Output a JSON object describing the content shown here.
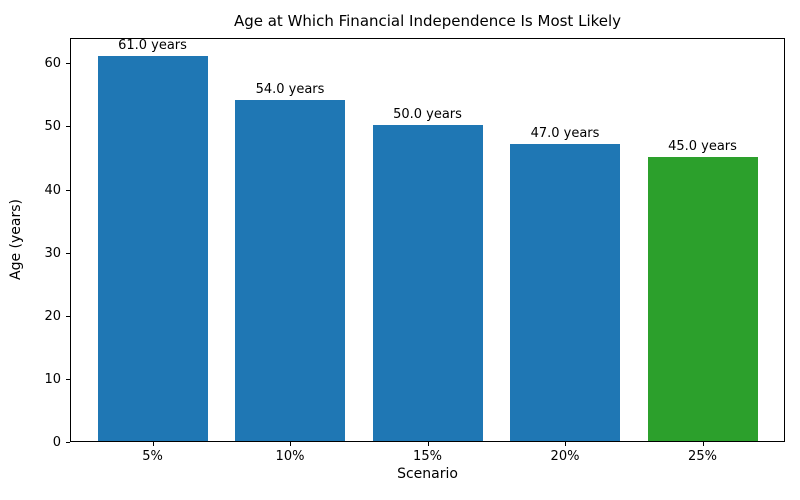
{
  "chart_data": {
    "type": "bar",
    "title": "Age at Which Financial Independence Is Most Likely",
    "xlabel": "Scenario",
    "ylabel": "Age (years)",
    "categories": [
      "5%",
      "10%",
      "15%",
      "20%",
      "25%"
    ],
    "values": [
      61.0,
      54.0,
      50.0,
      47.0,
      45.0
    ],
    "bar_labels": [
      "61.0 years",
      "54.0 years",
      "50.0 years",
      "47.0 years",
      "45.0 years"
    ],
    "bar_colors": [
      "#1f77b4",
      "#1f77b4",
      "#1f77b4",
      "#1f77b4",
      "#2ca02c"
    ],
    "ylim": [
      0,
      64
    ],
    "yticks": [
      0,
      10,
      20,
      30,
      40,
      50,
      60
    ],
    "grid": false,
    "legend": "none",
    "colors": {
      "bar_blue": "#1f77b4",
      "bar_green": "#2ca02c",
      "text": "#000000",
      "spine": "#000000",
      "background": "#ffffff"
    }
  }
}
